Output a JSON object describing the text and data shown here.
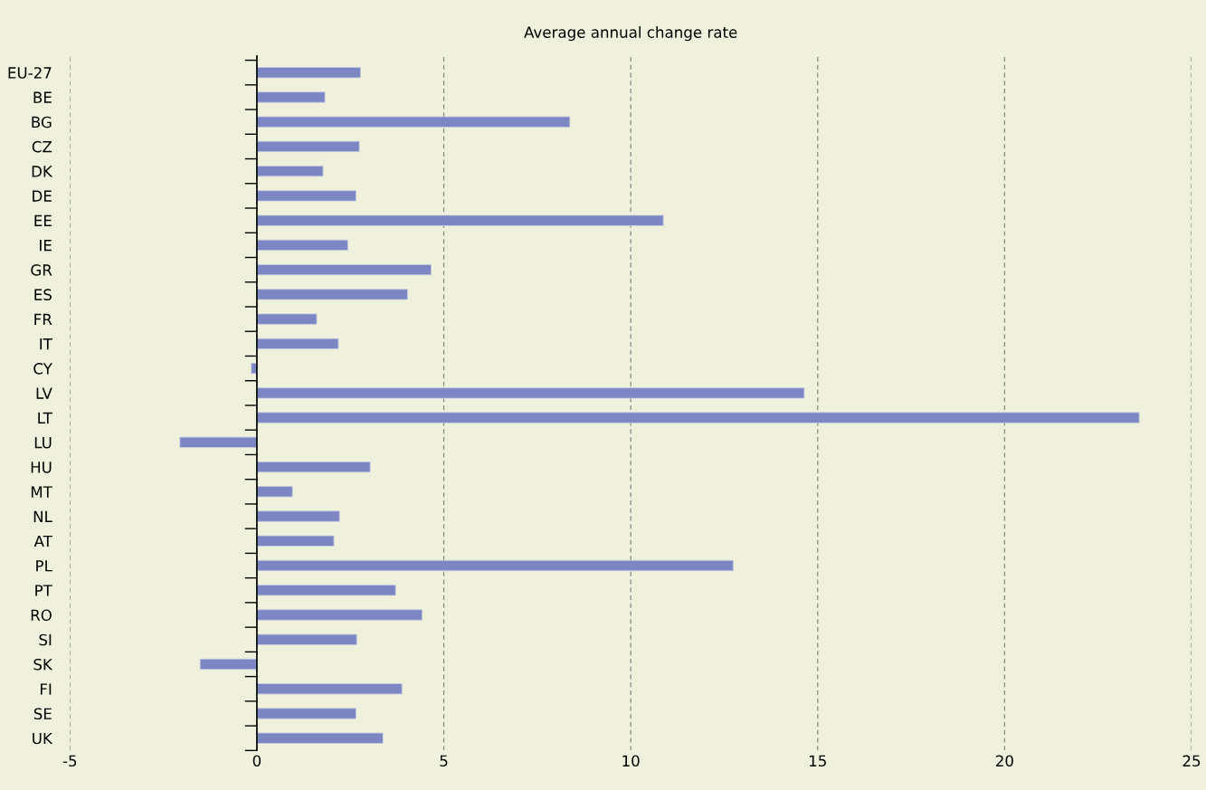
{
  "chart_data": {
    "type": "bar",
    "orientation": "horizontal",
    "title": "Average annual change rate",
    "categories": [
      "EU-27",
      "BE",
      "BG",
      "CZ",
      "DK",
      "DE",
      "EE",
      "IE",
      "GR",
      "ES",
      "FR",
      "IT",
      "CY",
      "LV",
      "LT",
      "LU",
      "HU",
      "MT",
      "NL",
      "AT",
      "PL",
      "PT",
      "RO",
      "SI",
      "SK",
      "FI",
      "SE",
      "UK"
    ],
    "values": [
      2.77,
      1.82,
      8.37,
      2.74,
      1.77,
      2.65,
      10.87,
      2.43,
      4.66,
      4.03,
      1.6,
      2.18,
      -0.15,
      14.64,
      23.6,
      -2.06,
      3.03,
      0.95,
      2.21,
      2.06,
      12.74,
      3.71,
      4.42,
      2.67,
      -1.52,
      3.88,
      2.65,
      3.37
    ],
    "color": "#7b86c3",
    "xlim": [
      -5,
      25
    ],
    "xticks": [
      -5,
      0,
      5,
      10,
      15,
      20,
      25
    ],
    "grid": "x"
  }
}
